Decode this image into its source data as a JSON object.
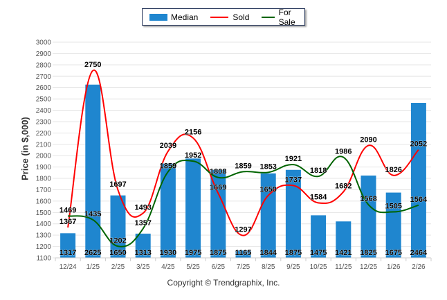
{
  "chart_data": {
    "type": "bar",
    "title": "",
    "xlabel": "",
    "ylabel": "Price (in $,000)",
    "ylim": [
      1100,
      3000
    ],
    "ytick_step": 100,
    "grid": true,
    "legend_position": "top-center",
    "categories": [
      "12/24",
      "1/25",
      "2/25",
      "3/25",
      "4/25",
      "5/25",
      "6/25",
      "7/25",
      "8/25",
      "9/25",
      "10/25",
      "11/25",
      "12/25",
      "1/26",
      "2/26"
    ],
    "series": [
      {
        "name": "Median",
        "kind": "bar",
        "color": "#1f86cf",
        "values": [
          1317,
          2625,
          1650,
          1313,
          1930,
          1975,
          1875,
          1165,
          1844,
          1875,
          1475,
          1421,
          1825,
          1675,
          2464
        ]
      },
      {
        "name": "Sold",
        "kind": "line",
        "color": "#ff0000",
        "values": [
          1367,
          2750,
          1697,
          1493,
          2039,
          2156,
          1669,
          1297,
          1650,
          1737,
          1584,
          1682,
          2090,
          1826,
          2052
        ]
      },
      {
        "name": "For Sale",
        "kind": "line",
        "color": "#006400",
        "values": [
          1469,
          1435,
          1202,
          1357,
          1859,
          1952,
          1808,
          1859,
          1853,
          1921,
          1818,
          1986,
          1568,
          1505,
          1564
        ]
      }
    ]
  },
  "legend": {
    "median": "Median",
    "sold": "Sold",
    "for_sale": "For Sale"
  },
  "footer": {
    "copyright": "Copyright © Trendgraphix, Inc."
  }
}
